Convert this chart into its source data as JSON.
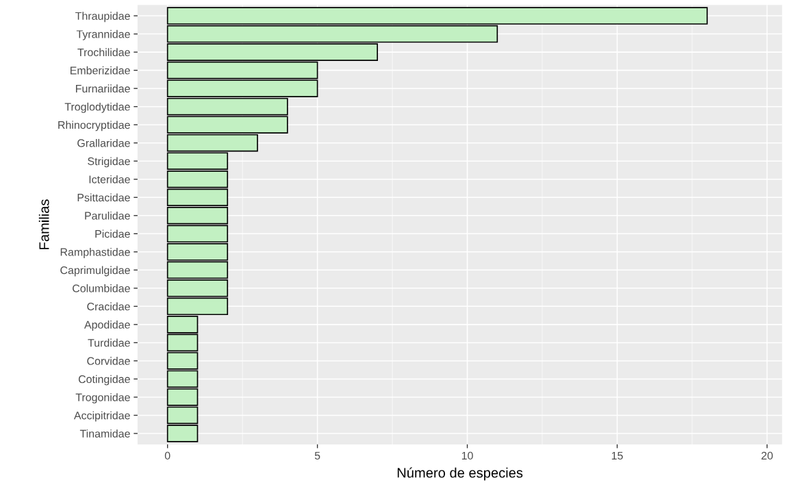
{
  "chart_data": {
    "type": "bar",
    "orientation": "horizontal",
    "xlabel": "Número de especies",
    "ylabel": "Familias",
    "categories": [
      "Thraupidae",
      "Tyrannidae",
      "Trochilidae",
      "Emberizidae",
      "Furnariidae",
      "Troglodytidae",
      "Rhinocryptidae",
      "Grallaridae",
      "Strigidae",
      "Icteridae",
      "Psittacidae",
      "Parulidae",
      "Picidae",
      "Ramphastidae",
      "Caprimulgidae",
      "Columbidae",
      "Cracidae",
      "Apodidae",
      "Turdidae",
      "Corvidae",
      "Cotingidae",
      "Trogonidae",
      "Accipitridae",
      "Tinamidae"
    ],
    "values": [
      18,
      11,
      7,
      5,
      5,
      4,
      4,
      3,
      2,
      2,
      2,
      2,
      2,
      2,
      2,
      2,
      2,
      1,
      1,
      1,
      1,
      1,
      1,
      1
    ],
    "color": "#c2f0c2",
    "xlim": [
      -1,
      20.5
    ],
    "xticks": [
      0,
      5,
      10,
      15,
      20
    ],
    "grid": true
  }
}
